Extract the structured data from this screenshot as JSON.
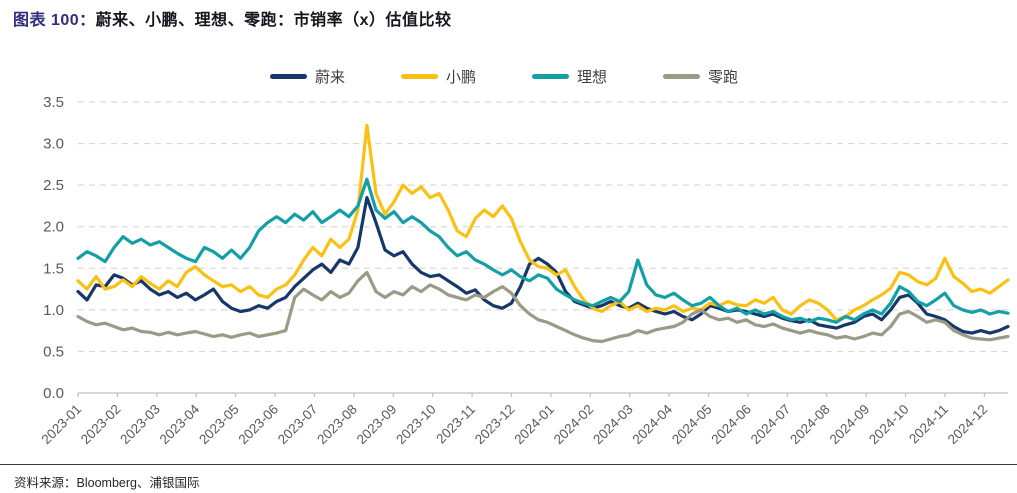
{
  "title": {
    "prefix": "图表 100：",
    "text": "蔚来、小鹏、理想、零跑：市销率（x）估值比较"
  },
  "source": {
    "label": "资料来源：",
    "text": "Bloomberg、浦银国际"
  },
  "colors": {
    "title_prefix": "#2f2d7e",
    "title_text": "#16161f",
    "axis_text": "#595959",
    "grid_line": "#d9d9d9",
    "axis_line": "#bfbfbf",
    "nio_navy": "#17376b",
    "xpeng_yellow": "#fcc013",
    "li_teal": "#129fa6",
    "leap_grey": "#9a9a86"
  },
  "chart_data": {
    "type": "line",
    "title": "蔚来、小鹏、理想、零跑：市销率（x）估值比较",
    "xlabel": "",
    "ylabel": "",
    "ylim": [
      0,
      3.5
    ],
    "y_ticks": [
      0.0,
      0.5,
      1.0,
      1.5,
      2.0,
      2.5,
      3.0,
      3.5
    ],
    "grid": "dashed-horizontal",
    "legend_position": "top",
    "sampling": "approx weekly, 104 points from 2023-01 to 2024-12",
    "x_tick_labels": [
      "2023-01",
      "2023-02",
      "2023-03",
      "2023-04",
      "2023-05",
      "2023-06",
      "2023-07",
      "2023-08",
      "2023-09",
      "2023-10",
      "2023-11",
      "2023-12",
      "2024-01",
      "2024-02",
      "2024-03",
      "2024-04",
      "2024-05",
      "2024-06",
      "2024-07",
      "2024-08",
      "2024-09",
      "2024-10",
      "2024-11",
      "2024-12"
    ],
    "series": [
      {
        "name": "蔚来",
        "color": "#17376b",
        "values": [
          1.22,
          1.12,
          1.3,
          1.28,
          1.42,
          1.38,
          1.3,
          1.35,
          1.25,
          1.18,
          1.22,
          1.15,
          1.2,
          1.12,
          1.18,
          1.25,
          1.1,
          1.02,
          0.98,
          1.0,
          1.05,
          1.02,
          1.1,
          1.15,
          1.28,
          1.38,
          1.48,
          1.55,
          1.45,
          1.6,
          1.55,
          1.75,
          2.35,
          2.05,
          1.72,
          1.65,
          1.7,
          1.55,
          1.45,
          1.4,
          1.42,
          1.35,
          1.28,
          1.2,
          1.24,
          1.12,
          1.05,
          1.02,
          1.08,
          1.28,
          1.55,
          1.62,
          1.55,
          1.45,
          1.22,
          1.1,
          1.06,
          1.02,
          1.05,
          1.1,
          1.05,
          1.02,
          1.08,
          1.02,
          0.98,
          0.95,
          0.98,
          0.92,
          0.88,
          0.95,
          1.05,
          1.02,
          0.98,
          1.0,
          0.98,
          0.95,
          0.92,
          0.95,
          0.9,
          0.87,
          0.85,
          0.88,
          0.82,
          0.8,
          0.78,
          0.82,
          0.85,
          0.92,
          0.95,
          0.88,
          1.0,
          1.15,
          1.18,
          1.08,
          0.95,
          0.92,
          0.88,
          0.8,
          0.74,
          0.72,
          0.75,
          0.72,
          0.75,
          0.8
        ]
      },
      {
        "name": "小鹏",
        "color": "#fcc013",
        "values": [
          1.35,
          1.25,
          1.4,
          1.25,
          1.28,
          1.36,
          1.28,
          1.4,
          1.32,
          1.25,
          1.35,
          1.28,
          1.45,
          1.52,
          1.42,
          1.35,
          1.28,
          1.3,
          1.22,
          1.28,
          1.18,
          1.15,
          1.25,
          1.3,
          1.42,
          1.6,
          1.75,
          1.65,
          1.85,
          1.75,
          1.85,
          2.2,
          3.22,
          2.4,
          2.15,
          2.3,
          2.5,
          2.4,
          2.48,
          2.35,
          2.4,
          2.2,
          1.95,
          1.88,
          2.1,
          2.2,
          2.12,
          2.25,
          2.1,
          1.82,
          1.6,
          1.52,
          1.5,
          1.42,
          1.48,
          1.28,
          1.12,
          1.02,
          0.98,
          1.05,
          1.1,
          1.0,
          1.05,
          0.98,
          1.02,
          1.0,
          1.05,
          0.98,
          1.02,
          1.0,
          1.08,
          1.05,
          1.1,
          1.06,
          1.05,
          1.12,
          1.08,
          1.15,
          1.0,
          0.95,
          1.05,
          1.12,
          1.08,
          1.0,
          0.88,
          0.92,
          1.0,
          1.05,
          1.12,
          1.18,
          1.26,
          1.45,
          1.42,
          1.34,
          1.3,
          1.38,
          1.62,
          1.4,
          1.32,
          1.22,
          1.25,
          1.2,
          1.28,
          1.36
        ]
      },
      {
        "name": "理想",
        "color": "#129fa6",
        "values": [
          1.62,
          1.7,
          1.65,
          1.58,
          1.75,
          1.88,
          1.8,
          1.85,
          1.78,
          1.82,
          1.75,
          1.68,
          1.62,
          1.58,
          1.75,
          1.7,
          1.62,
          1.72,
          1.62,
          1.75,
          1.95,
          2.05,
          2.12,
          2.05,
          2.15,
          2.08,
          2.18,
          2.05,
          2.12,
          2.2,
          2.12,
          2.25,
          2.57,
          2.2,
          2.1,
          2.18,
          2.05,
          2.12,
          2.05,
          1.95,
          1.88,
          1.75,
          1.65,
          1.7,
          1.6,
          1.55,
          1.48,
          1.42,
          1.48,
          1.4,
          1.35,
          1.42,
          1.38,
          1.25,
          1.18,
          1.12,
          1.08,
          1.05,
          1.1,
          1.15,
          1.1,
          1.22,
          1.6,
          1.3,
          1.18,
          1.15,
          1.2,
          1.12,
          1.05,
          1.08,
          1.15,
          1.05,
          0.98,
          1.02,
          0.95,
          1.0,
          0.95,
          0.98,
          0.92,
          0.88,
          0.9,
          0.86,
          0.9,
          0.88,
          0.85,
          0.92,
          0.88,
          0.95,
          1.0,
          0.95,
          1.08,
          1.28,
          1.22,
          1.1,
          1.05,
          1.12,
          1.2,
          1.05,
          1.0,
          0.97,
          1.0,
          0.95,
          0.98,
          0.96
        ]
      },
      {
        "name": "零跑",
        "color": "#9a9a86",
        "values": [
          0.92,
          0.86,
          0.82,
          0.84,
          0.8,
          0.76,
          0.78,
          0.74,
          0.73,
          0.7,
          0.73,
          0.7,
          0.72,
          0.74,
          0.71,
          0.68,
          0.7,
          0.67,
          0.7,
          0.72,
          0.68,
          0.7,
          0.72,
          0.75,
          1.15,
          1.25,
          1.18,
          1.12,
          1.22,
          1.15,
          1.2,
          1.35,
          1.45,
          1.22,
          1.15,
          1.22,
          1.18,
          1.28,
          1.22,
          1.3,
          1.25,
          1.18,
          1.15,
          1.12,
          1.18,
          1.15,
          1.22,
          1.28,
          1.2,
          1.05,
          0.95,
          0.88,
          0.85,
          0.8,
          0.75,
          0.7,
          0.66,
          0.63,
          0.62,
          0.65,
          0.68,
          0.7,
          0.75,
          0.72,
          0.76,
          0.78,
          0.8,
          0.85,
          0.95,
          1.0,
          0.92,
          0.88,
          0.9,
          0.85,
          0.88,
          0.82,
          0.8,
          0.83,
          0.78,
          0.75,
          0.72,
          0.75,
          0.72,
          0.7,
          0.66,
          0.68,
          0.65,
          0.68,
          0.72,
          0.7,
          0.8,
          0.95,
          0.98,
          0.92,
          0.85,
          0.88,
          0.85,
          0.75,
          0.7,
          0.66,
          0.65,
          0.64,
          0.66,
          0.68
        ]
      }
    ]
  }
}
